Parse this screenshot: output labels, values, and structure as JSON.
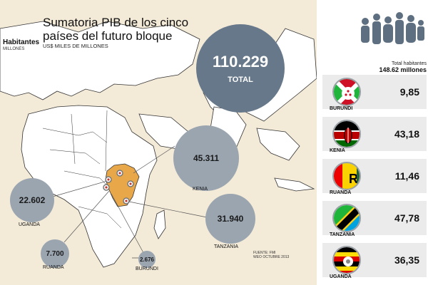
{
  "header": {
    "title": "Sumatoria PIB de los cinco países del futuro bloque",
    "subtitle": "US$ MILES DE MILLONES"
  },
  "total": {
    "value": "110.229",
    "label": "TOTAL"
  },
  "countries": [
    {
      "name": "KENIA",
      "pib": "45.311"
    },
    {
      "name": "UGANDA",
      "pib": "22.602"
    },
    {
      "name": "TANZANIA",
      "pib": "31.940"
    },
    {
      "name": "RUANDA",
      "pib": "7.700"
    },
    {
      "name": "BURUNDI",
      "pib": "2.676"
    }
  ],
  "source": {
    "line1": "FUENTE: FMI",
    "line2": "WEO OCTUBRE 2013"
  },
  "population": {
    "title": "Habitantes",
    "unit": "MILLONES",
    "total_label": "Total habitantes",
    "total_value": "148.62 millones",
    "rows": [
      {
        "name": "BURUNDI",
        "value": "9,85",
        "flag_icon": "burundi-flag-icon"
      },
      {
        "name": "KENIA",
        "value": "43,18",
        "flag_icon": "kenya-flag-icon"
      },
      {
        "name": "RUANDA",
        "value": "11,46",
        "flag_icon": "rwanda-flag-icon"
      },
      {
        "name": "TANZANIA",
        "value": "47,78",
        "flag_icon": "tanzania-flag-icon"
      },
      {
        "name": "UGANDA",
        "value": "36,35",
        "flag_icon": "uganda-flag-icon"
      }
    ]
  },
  "colors": {
    "background": "#f3ead8",
    "land": "#ffffff",
    "highlight": "#e8a84a",
    "bubble_total": "#66788a",
    "bubble": "#9aa5b0"
  }
}
